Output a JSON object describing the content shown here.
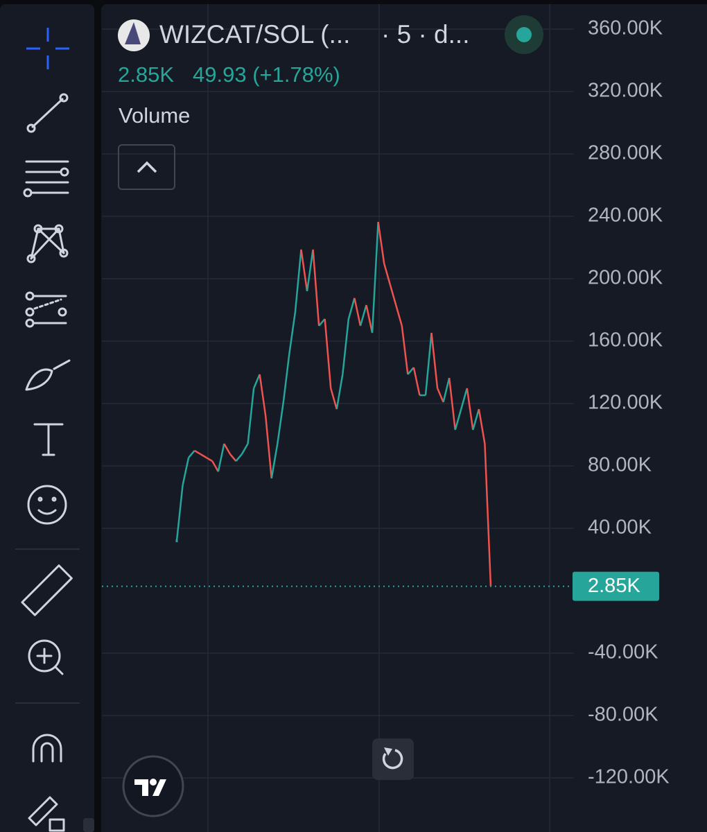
{
  "header": {
    "symbol": "WIZCAT/SOL (...",
    "interval": "· 5 · d...",
    "price": "2.85K",
    "change": "49.93 (+1.78%)",
    "indicator": "Volume"
  },
  "chart_data": {
    "type": "line",
    "values": [
      32000,
      67600,
      85300,
      89800,
      87600,
      85300,
      83100,
      76400,
      94200,
      87600,
      83100,
      87600,
      94200,
      129800,
      138700,
      112000,
      72000,
      94200,
      120900,
      152000,
      178700,
      218700,
      192000,
      218700,
      169800,
      174200,
      129800,
      116400,
      138700,
      174200,
      187600,
      169800,
      183100,
      165300,
      236400,
      209800,
      196400,
      183100,
      169800,
      138700,
      143100,
      125300,
      125300,
      165300,
      129800,
      120900,
      136400,
      103100,
      116400,
      129800,
      103100,
      116400,
      94200,
      2850
    ],
    "up_color": "#26a69a",
    "down_color": "#ef5350",
    "ylim": [
      -154670,
      378670
    ],
    "yticks": [
      {
        "value": 360000,
        "label": "360.00K"
      },
      {
        "value": 320000,
        "label": "320.00K"
      },
      {
        "value": 280000,
        "label": "280.00K"
      },
      {
        "value": 240000,
        "label": "240.00K"
      },
      {
        "value": 200000,
        "label": "200.00K"
      },
      {
        "value": 160000,
        "label": "160.00K"
      },
      {
        "value": 120000,
        "label": "120.00K"
      },
      {
        "value": 80000,
        "label": "80.00K"
      },
      {
        "value": 40000,
        "label": "40.00K"
      },
      {
        "value": -40000,
        "label": "-40.00K"
      },
      {
        "value": -80000,
        "label": "-80.00K"
      },
      {
        "value": -120000,
        "label": "-120.00K"
      }
    ],
    "last_price": {
      "value": 2850,
      "label": "2.85K"
    },
    "grid": true
  }
}
